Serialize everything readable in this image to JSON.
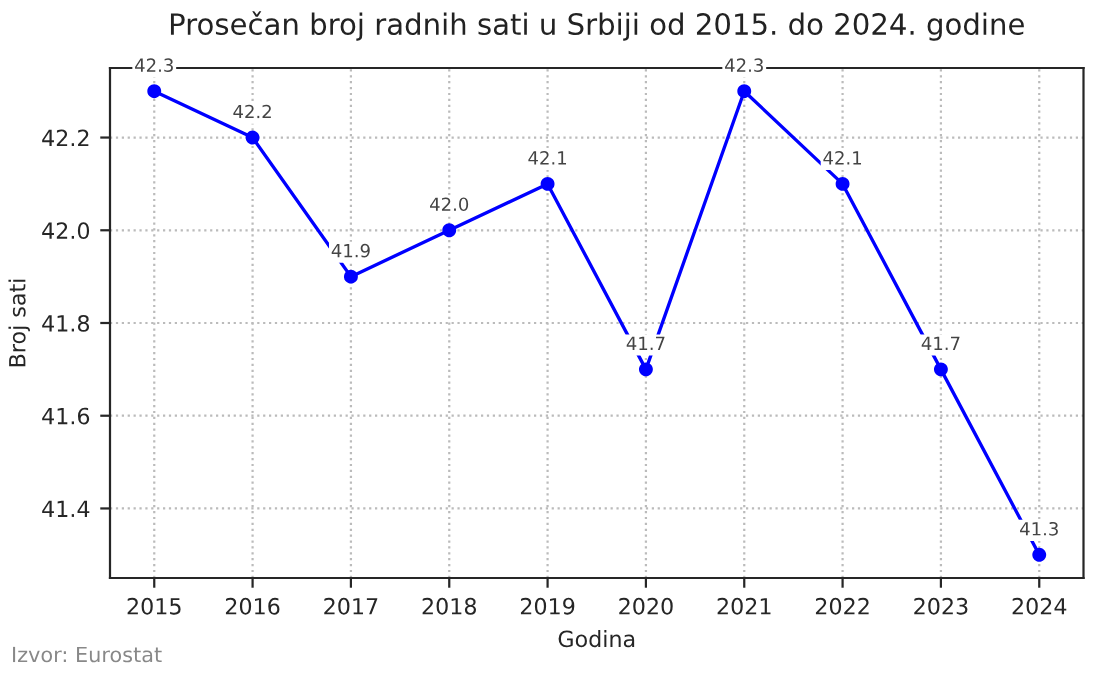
{
  "chart_data": {
    "type": "line",
    "title": "Prosečan broj radnih sati u Srbiji od 2015. do 2024. godine",
    "xlabel": "Godina",
    "ylabel": "Broj sati",
    "x": [
      2015,
      2016,
      2017,
      2018,
      2019,
      2020,
      2021,
      2022,
      2023,
      2024
    ],
    "series": [
      {
        "color": "#0000ff",
        "values": [
          42.3,
          42.2,
          41.9,
          42.0,
          42.1,
          41.7,
          42.3,
          42.1,
          41.7,
          41.3
        ]
      }
    ],
    "value_labels": [
      "42.3",
      "42.2",
      "41.9",
      "42.0",
      "42.1",
      "41.7",
      "42.3",
      "42.1",
      "41.7",
      "41.3"
    ],
    "xlim": [
      2014.55,
      2024.45
    ],
    "xticks": [
      2015,
      2016,
      2017,
      2018,
      2019,
      2020,
      2021,
      2022,
      2023,
      2024
    ],
    "ylim": [
      41.25,
      42.35
    ],
    "yticks": [
      41.4,
      41.6,
      41.8,
      {
        "value": 42.0,
        "label": "42.0"
      },
      42.2
    ],
    "grid": true,
    "marker": "circle",
    "line_style": "solid",
    "annotations": [
      "Izvor: Eurostat"
    ]
  }
}
